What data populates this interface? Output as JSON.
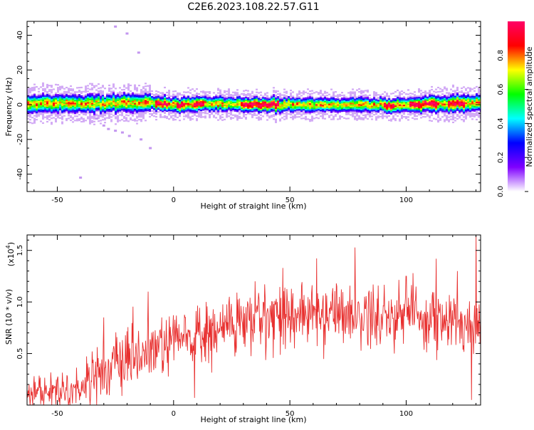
{
  "title": "C2E6.2023.108.22.57.G11",
  "chart_data": [
    {
      "type": "heatmap",
      "xlabel": "Height of straight line (km)",
      "ylabel": "Frequency (Hz)",
      "xlim": [
        -63,
        132
      ],
      "ylim": [
        -50,
        48
      ],
      "xticks": [
        -50,
        0,
        50,
        100
      ],
      "yticks": [
        40,
        20,
        0,
        -20,
        -40
      ],
      "xtick_labels": [
        "-50",
        "0",
        "50",
        "100"
      ],
      "ytick_labels": [
        "40",
        "20",
        "0",
        "-20",
        "-40"
      ],
      "grid": false,
      "colorbar": {
        "label": "Normalized spectral amplitude",
        "range": [
          0,
          1
        ],
        "ticks": [
          0.0,
          0.2,
          0.4,
          0.6,
          0.8
        ],
        "tick_labels": [
          "0.0",
          "0.2",
          "0.4",
          "0.6",
          "0.8"
        ],
        "colors": [
          "#ffffff",
          "#7f00ff",
          "#0000ff",
          "#00ffff",
          "#00ff00",
          "#ffff00",
          "#ff0000",
          "#ff0066"
        ]
      },
      "band": {
        "center_hz": [
          [
            -63,
            0.5
          ],
          [
            -40,
            0.5
          ],
          [
            -20,
            1.0
          ],
          [
            -10,
            1.0
          ],
          [
            0,
            0.0
          ],
          [
            20,
            0.5
          ],
          [
            30,
            0.0
          ],
          [
            50,
            0.3
          ],
          [
            60,
            0.0
          ],
          [
            80,
            0.0
          ],
          [
            95,
            -0.5
          ],
          [
            100,
            0.0
          ],
          [
            120,
            0.5
          ],
          [
            132,
            1.5
          ]
        ],
        "peak_segments_km": [
          [
            -8,
            -2
          ],
          [
            1,
            5
          ],
          [
            9,
            13
          ],
          [
            29,
            45
          ],
          [
            90,
            95
          ],
          [
            101,
            113
          ],
          [
            118,
            125
          ]
        ]
      },
      "scatter_tail_points": [
        [
          -33,
          -8
        ],
        [
          -30,
          -12
        ],
        [
          -28,
          -14
        ],
        [
          -25,
          -15
        ],
        [
          -22,
          -16
        ],
        [
          -19,
          -18
        ],
        [
          -14,
          -20
        ],
        [
          -10,
          -25
        ],
        [
          -40,
          -42
        ],
        [
          -25,
          45
        ],
        [
          -20,
          41
        ],
        [
          -15,
          30
        ]
      ]
    },
    {
      "type": "line",
      "xlabel": "Height of straight line (km)",
      "ylabel": "SNR (10 * v/v)",
      "yscale_label": "(x10",
      "yscale_exponent": "4",
      "yscale_suffix": ")",
      "xlim": [
        -63,
        132
      ],
      "ylim": [
        0,
        1.65
      ],
      "xticks": [
        -50,
        0,
        50,
        100
      ],
      "yticks": [
        0.5,
        1.0,
        1.5
      ],
      "xtick_labels": [
        "-50",
        "0",
        "50",
        "100"
      ],
      "ytick_labels": [
        "0.5",
        "1.0",
        "1.5"
      ],
      "grid": false,
      "series": [
        {
          "color": "#e8302f",
          "trend": [
            [
              -63,
              0.12
            ],
            [
              -40,
              0.16
            ],
            [
              -35,
              0.3
            ],
            [
              -20,
              0.4
            ],
            [
              -5,
              0.55
            ],
            [
              5,
              0.65
            ],
            [
              15,
              0.68
            ],
            [
              25,
              0.78
            ],
            [
              35,
              0.82
            ],
            [
              45,
              0.9
            ],
            [
              60,
              0.88
            ],
            [
              75,
              0.9
            ],
            [
              85,
              0.85
            ],
            [
              100,
              0.9
            ],
            [
              115,
              0.82
            ],
            [
              125,
              0.78
            ],
            [
              132,
              0.8
            ]
          ],
          "peaks": [
            [
              -35,
              0.52
            ],
            [
              -30,
              0.85
            ],
            [
              -15,
              0.72
            ],
            [
              -11,
              1.1
            ],
            [
              -5,
              0.85
            ],
            [
              5,
              0.85
            ],
            [
              14,
              1.0
            ],
            [
              24,
              1.05
            ],
            [
              35,
              1.2
            ],
            [
              47,
              1.33
            ],
            [
              70,
              1.18
            ],
            [
              85,
              1.1
            ],
            [
              100,
              1.25
            ],
            [
              103,
              1.28
            ],
            [
              113,
              1.42
            ],
            [
              122,
              1.3
            ],
            [
              130,
              1.65
            ]
          ],
          "dips": [
            [
              -42,
              0.02
            ],
            [
              9,
              0.07
            ],
            [
              52,
              0.55
            ],
            [
              95,
              0.5
            ],
            [
              128,
              0.05
            ]
          ]
        }
      ]
    }
  ]
}
